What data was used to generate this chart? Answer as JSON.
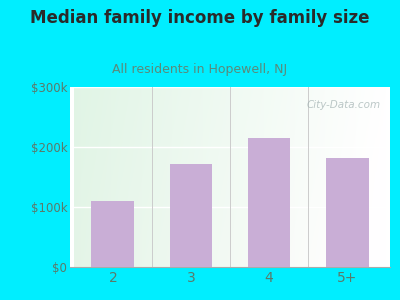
{
  "title": "Median family income by family size",
  "subtitle": "All residents in Hopewell, NJ",
  "categories": [
    "2",
    "3",
    "4",
    "5+"
  ],
  "values": [
    110000,
    172000,
    215000,
    182000
  ],
  "bar_color": "#c9aed6",
  "bg_outer": "#00eeff",
  "title_color": "#2a2a2a",
  "subtitle_color": "#5a8a7a",
  "tick_color": "#5a7a6a",
  "ytick_labels": [
    "$0",
    "$100k",
    "$200k",
    "$300k"
  ],
  "ytick_values": [
    0,
    100000,
    200000,
    300000
  ],
  "ylim": [
    0,
    300000
  ],
  "title_fontsize": 12,
  "subtitle_fontsize": 9,
  "watermark": "City-Data.com"
}
